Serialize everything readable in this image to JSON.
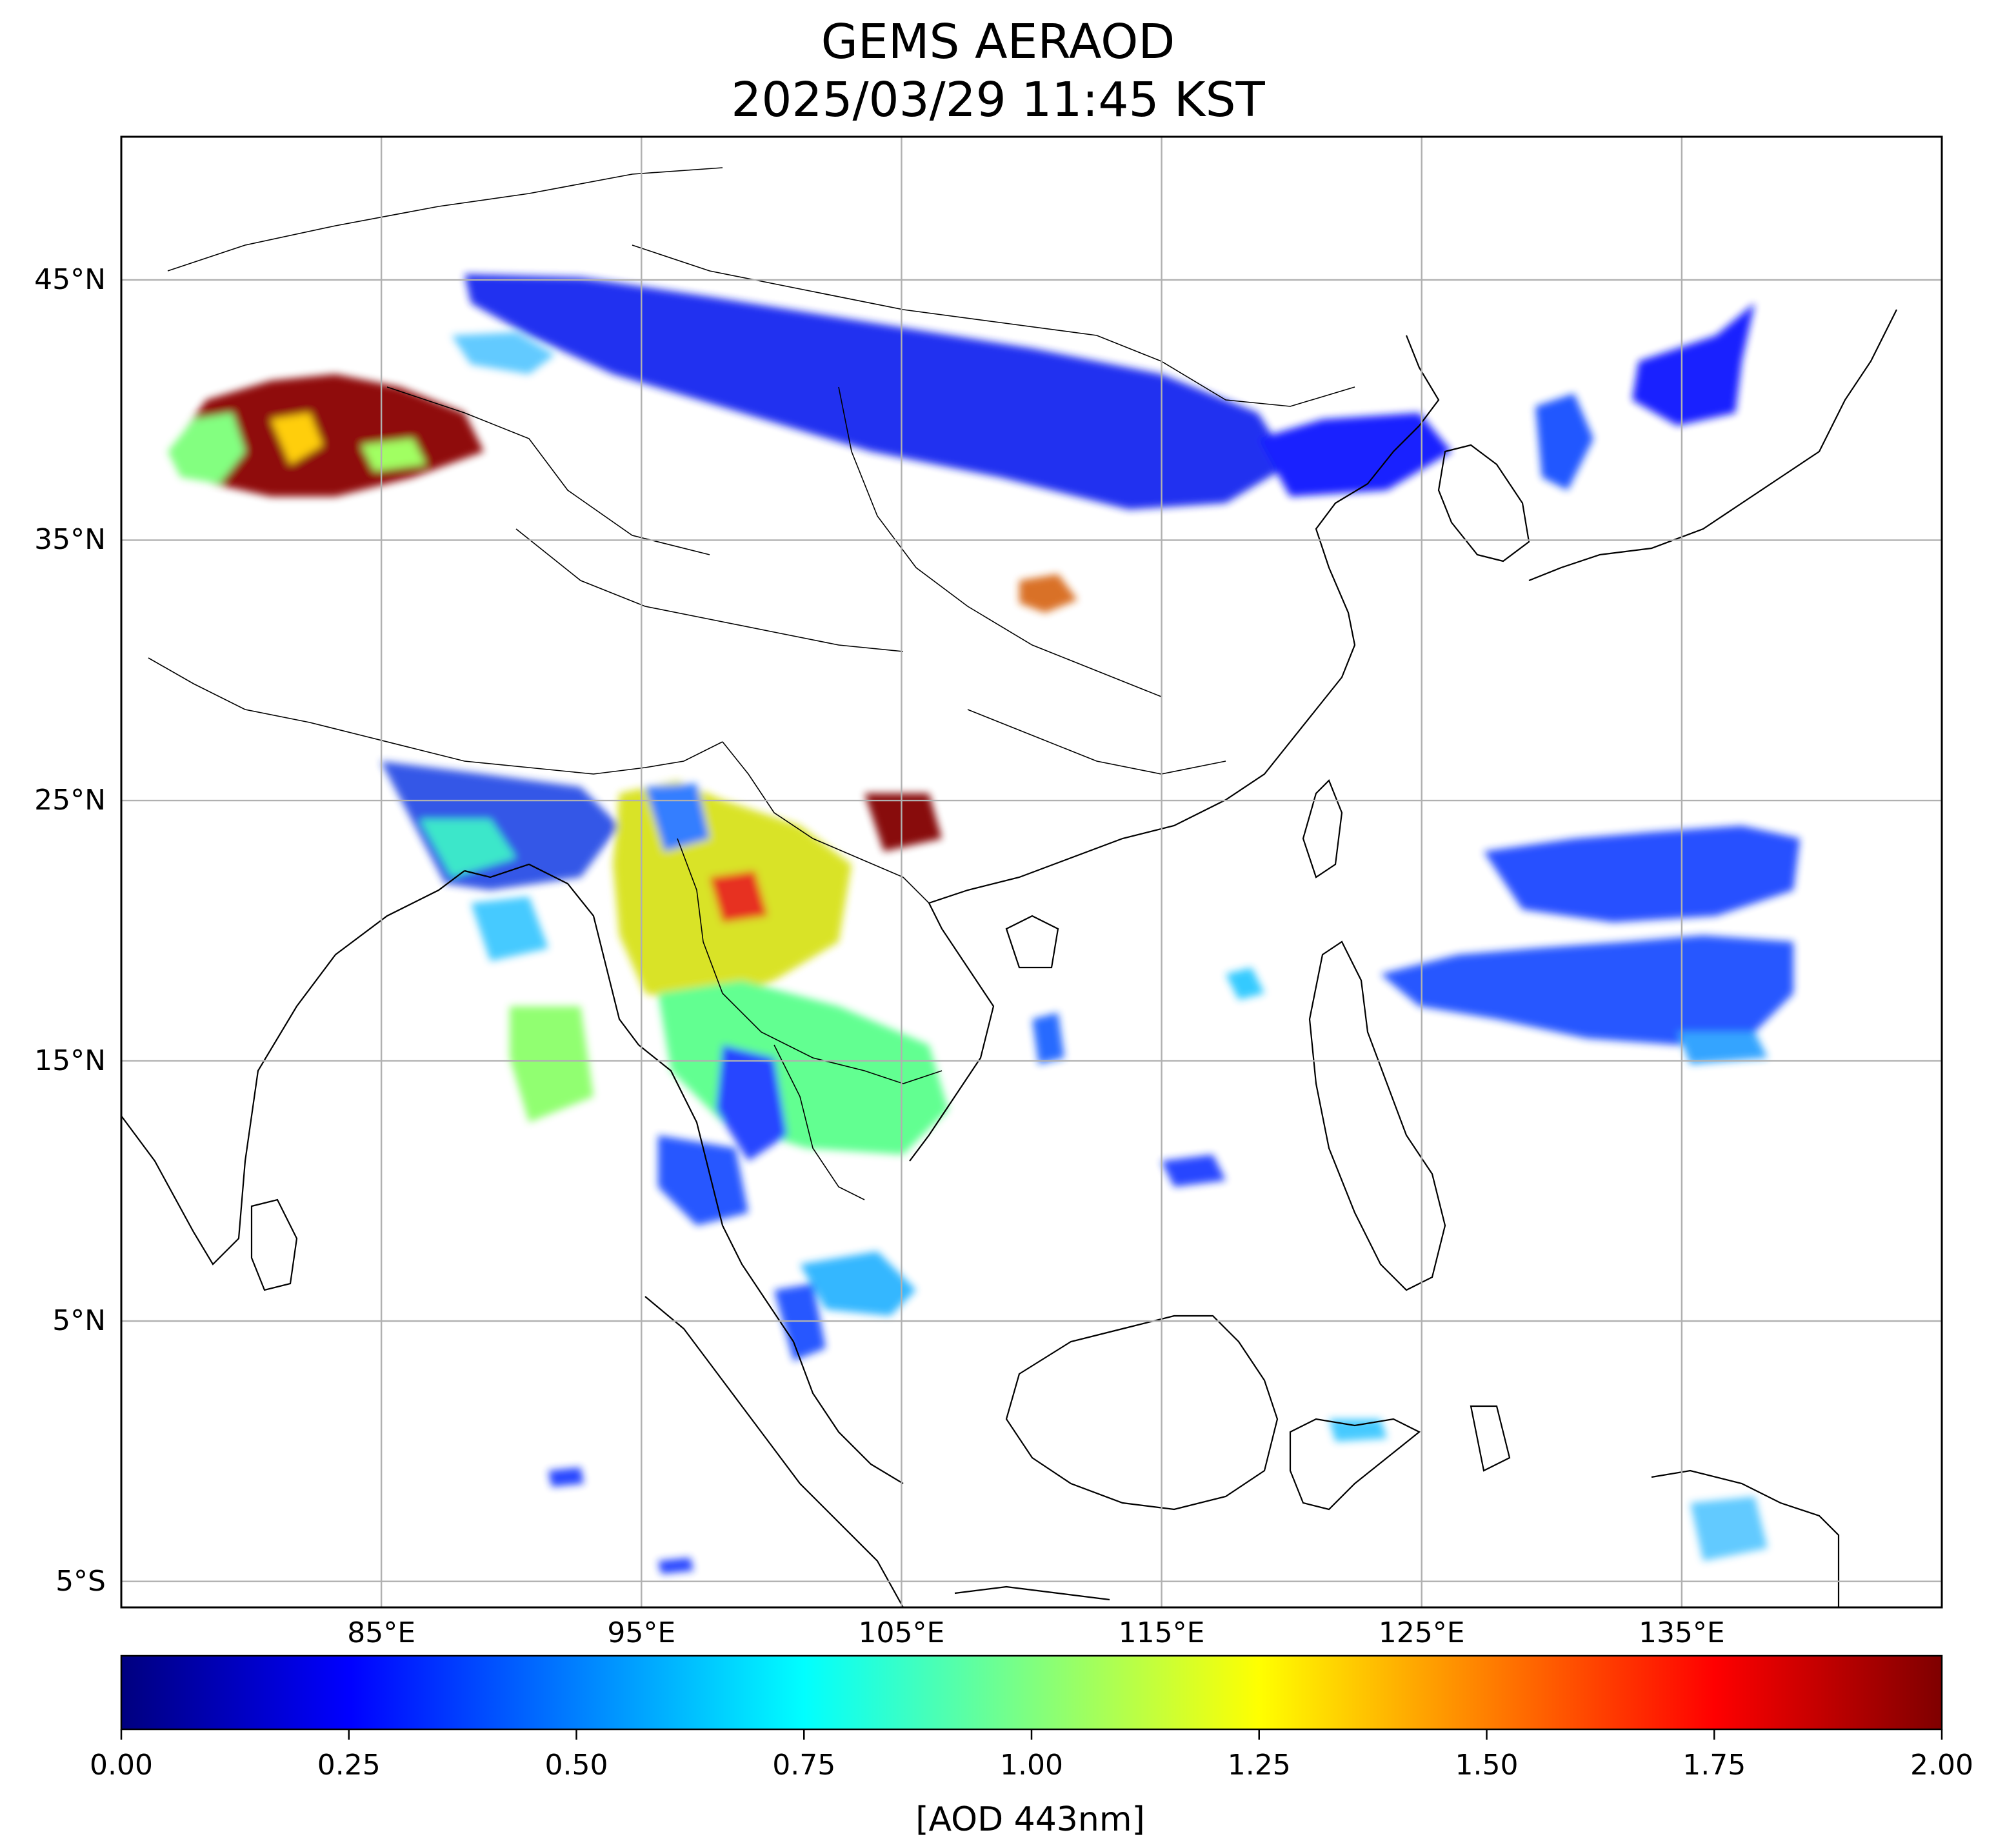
{
  "title": [
    "GEMS AERAOD",
    "2025/03/29 11:45 KST"
  ],
  "map": {
    "lat_ticks": [
      {
        "value": 45,
        "label": "45°N"
      },
      {
        "value": 35,
        "label": "35°N"
      },
      {
        "value": 25,
        "label": "25°N"
      },
      {
        "value": 15,
        "label": "15°N"
      },
      {
        "value": 5,
        "label": "5°N"
      },
      {
        "value": -5,
        "label": "5°S"
      }
    ],
    "lon_ticks": [
      {
        "value": 85,
        "label": "85°E"
      },
      {
        "value": 95,
        "label": "95°E"
      },
      {
        "value": 105,
        "label": "105°E"
      },
      {
        "value": 115,
        "label": "115°E"
      },
      {
        "value": 125,
        "label": "125°E"
      },
      {
        "value": 135,
        "label": "135°E"
      }
    ],
    "lon_range": [
      75,
      145
    ],
    "lat_range": [
      -6,
      50.5
    ],
    "grid": true
  },
  "colorbar": {
    "colormap": "jet",
    "ticks": [
      "0.00",
      "0.25",
      "0.50",
      "0.75",
      "1.00",
      "1.25",
      "1.50",
      "1.75",
      "2.00"
    ],
    "range": [
      0,
      2
    ],
    "label": "[AOD 443nm]"
  },
  "regions": [
    {
      "name": "taklamakan-dust",
      "lon": 81,
      "lat": 38.8,
      "aod": 1.95
    },
    {
      "name": "taklamakan-edge",
      "lon": 78.5,
      "lat": 38.5,
      "aod": 0.95
    },
    {
      "name": "mongolia-band",
      "lon": 103,
      "lat": 41.5,
      "aod": 0.25
    },
    {
      "name": "north-china",
      "lon": 113,
      "lat": 38.5,
      "aod": 0.22
    },
    {
      "name": "korea-japan-sea",
      "lon": 132.5,
      "lat": 41.5,
      "aod": 0.25
    },
    {
      "name": "bangladesh",
      "lon": 87.5,
      "lat": 24,
      "aod": 0.45
    },
    {
      "name": "myanmar",
      "lon": 95.5,
      "lat": 21.5,
      "aod": 1.3
    },
    {
      "name": "yunnan-hotspot",
      "lon": 98.8,
      "lat": 21.6,
      "aod": 1.75
    },
    {
      "name": "guizhou-hotspot",
      "lon": 104.8,
      "lat": 24.5,
      "aod": 1.95
    },
    {
      "name": "thailand-laos",
      "lon": 102,
      "lat": 16,
      "aod": 0.95
    },
    {
      "name": "andaman",
      "lon": 98,
      "lat": 10,
      "aod": 0.45
    },
    {
      "name": "western-pacific",
      "lon": 130,
      "lat": 19,
      "aod": 0.3
    },
    {
      "name": "qinling-hotspot",
      "lon": 110,
      "lat": 33,
      "aod": 1.6
    }
  ]
}
